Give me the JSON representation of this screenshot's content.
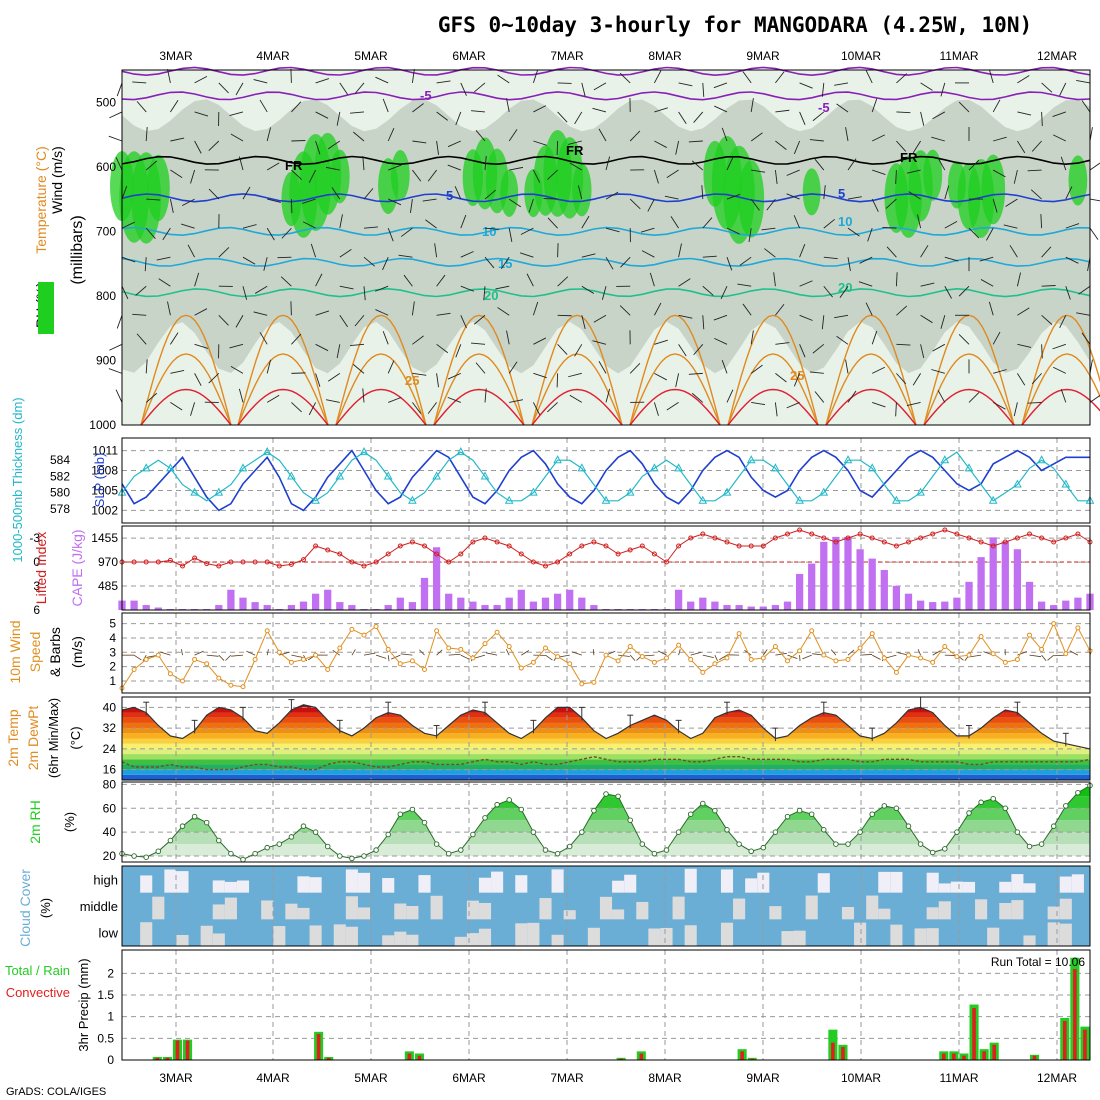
{
  "title": "GFS 0~10day 3-hourly for MANGODARA (4.25W, 10N)",
  "footer": "GrADS: COLA/IGES",
  "colors": {
    "rh_green": "#1fcf1f",
    "rh_grey": "#c8d4c8",
    "rh_light": "#e8f2e8",
    "temp_purple": "#8a1fb8",
    "temp_blue": "#1f3fd0",
    "temp_cyan": "#1fa8d8",
    "temp_teal": "#20c08c",
    "temp_orange": "#e08a1f",
    "temp_red": "#e01f2f",
    "slp_blue": "#1f3fd0",
    "thick_cyan": "#22b8c8",
    "li_red": "#d02020",
    "cape_purple": "#c070f0",
    "wind_orange": "#e0901f",
    "cloud_blue": "#6aaed6",
    "cloud_white": "#f0eef6",
    "precip_green": "#22cc22",
    "precip_red": "#e02020"
  },
  "chart_data": [
    {
      "type": "heatmap",
      "name_label": "RH (%) / Temperature (°C) / Wind (m/s) (millibars)",
      "ylabel_parts": [
        "Wind (m/s)",
        "Temperature (°C)",
        "RH (%)",
        "(millibars)"
      ],
      "x_dates": [
        "3MAR",
        "4MAR",
        "5MAR",
        "6MAR",
        "7MAR",
        "8MAR",
        "9MAR",
        "10MAR",
        "11MAR",
        "12MAR"
      ],
      "y_ticks": [
        500,
        600,
        700,
        800,
        900,
        1000
      ],
      "ylim": [
        450,
        1000
      ],
      "isotherm_labels": [
        "-5",
        "-5",
        "FR",
        "FR",
        "FR",
        "5",
        "5",
        "10",
        "10",
        "15",
        "20",
        "20",
        "25",
        "25"
      ],
      "isotherm_levels_mb": {
        "-5": 490,
        "FR": 590,
        "5": 650,
        "10": 700,
        "15": 750,
        "20": 795
      }
    },
    {
      "type": "line",
      "ylabel_left": "1000-500mb Thickness (dm)",
      "ylabel_right": "SLP (mb)",
      "thickness_ticks": [
        578,
        580,
        582,
        584
      ],
      "slp_ticks": [
        1002,
        1005,
        1008,
        1011
      ],
      "slp_values": [
        1006,
        1003,
        1004,
        1006,
        1008,
        1010,
        1007,
        1004,
        1002,
        1003,
        1006,
        1008,
        1010,
        1007,
        1003,
        1002,
        1004,
        1007,
        1009,
        1011,
        1008,
        1005,
        1003,
        1004,
        1007,
        1009,
        1011,
        1010,
        1007,
        1004,
        1003,
        1005,
        1008,
        1010,
        1011,
        1009,
        1006,
        1004,
        1003,
        1005,
        1008,
        1010,
        1011,
        1009,
        1006,
        1004,
        1003,
        1005,
        1008,
        1010,
        1011,
        1010,
        1007,
        1005,
        1004,
        1005,
        1008,
        1010,
        1011,
        1010,
        1008,
        1005,
        1004,
        1006,
        1008,
        1010,
        1011,
        1010,
        1008,
        1006,
        1005,
        1006,
        1009,
        1010,
        1011,
        1010,
        1008,
        1009,
        1010,
        1010,
        1010
      ],
      "thickness_values": [
        580,
        582,
        583,
        584,
        583,
        581,
        580,
        579,
        580,
        581,
        583,
        584,
        585,
        584,
        582,
        580,
        579,
        580,
        582,
        584,
        585,
        584,
        582,
        580,
        579,
        580,
        582,
        584,
        585,
        584,
        582,
        580,
        579,
        579,
        580,
        582,
        584,
        584,
        583,
        581,
        579,
        579,
        580,
        582,
        583,
        584,
        583,
        581,
        579,
        579,
        580,
        582,
        584,
        584,
        583,
        581,
        579,
        579,
        580,
        582,
        584,
        584,
        583,
        581,
        579,
        579,
        580,
        582,
        584,
        585,
        583,
        581,
        579,
        580,
        581,
        583,
        584,
        583,
        581,
        579,
        579
      ]
    },
    {
      "type": "bar",
      "ylabel_left": "Lifted Index",
      "ylabel_right": "CAPE (J/kg)",
      "li_ticks": [
        "-3",
        "0",
        "3",
        "6"
      ],
      "cape_ticks": [
        "1455",
        "970",
        "485"
      ],
      "cape_values": [
        190,
        190,
        100,
        50,
        20,
        20,
        20,
        20,
        100,
        410,
        250,
        160,
        100,
        20,
        100,
        170,
        330,
        410,
        160,
        100,
        20,
        20,
        100,
        250,
        160,
        650,
        1270,
        330,
        250,
        170,
        100,
        100,
        250,
        410,
        170,
        250,
        330,
        410,
        250,
        100,
        20,
        20,
        20,
        20,
        20,
        20,
        410,
        170,
        250,
        170,
        100,
        100,
        70,
        70,
        100,
        170,
        730,
        940,
        1380,
        1480,
        1480,
        1230,
        1040,
        810,
        490,
        330,
        190,
        160,
        170,
        250,
        570,
        1070,
        1470,
        1390,
        1230,
        570,
        170,
        100,
        190,
        250,
        330
      ],
      "li_values": [
        0,
        0,
        0,
        0,
        -0.2,
        0.5,
        -0.5,
        0.2,
        0.5,
        0,
        0,
        0,
        0,
        0.5,
        0.3,
        -0.3,
        -2,
        -1.5,
        -1,
        0,
        0.5,
        0,
        -1,
        -2,
        -2.5,
        -2,
        -1,
        0,
        -1,
        -2.5,
        -3,
        -2.5,
        -2,
        -1,
        0,
        0.5,
        0,
        -1,
        -2,
        -2.5,
        -2,
        -1,
        -1.5,
        -2,
        -1,
        0,
        -2,
        -3,
        -3.5,
        -3,
        -2.5,
        -2,
        -2,
        -2,
        -3,
        -3.5,
        -4,
        -3.5,
        -3,
        -2.5,
        -3,
        -3.5,
        -3,
        -2.5,
        -2,
        -2.5,
        -3,
        -3.5,
        -4,
        -3.5,
        -3,
        -2.5,
        -2,
        -2.5,
        -3,
        -3.5,
        -3,
        -2.5,
        -3,
        -3.5,
        -2.5
      ]
    },
    {
      "type": "line",
      "ylabel": "10m Wind Speed & Barbs (m/s)",
      "ylabel_parts": [
        "10m Wind",
        "Speed",
        "& Barbs",
        "(m/s)"
      ],
      "y_ticks": [
        1,
        2,
        3,
        4,
        5
      ],
      "values": [
        0.5,
        1.8,
        2.5,
        2.8,
        1.5,
        1.0,
        2.5,
        2.2,
        1.2,
        0.7,
        0.6,
        2.5,
        4.5,
        3.0,
        2.3,
        2.5,
        2.8,
        1.8,
        3.3,
        4.6,
        4.2,
        4.8,
        3.2,
        2.2,
        2.4,
        1.8,
        4.5,
        3.3,
        3.2,
        2.6,
        3.6,
        4.4,
        3.4,
        1.9,
        2.3,
        3.3,
        2.7,
        2.2,
        0.8,
        0.9,
        2.8,
        2.4,
        3.4,
        2.7,
        2.3,
        2.6,
        3.5,
        2.5,
        1.6,
        2.2,
        2.6,
        4.3,
        2.5,
        2.6,
        3.4,
        2.4,
        3.1,
        4.5,
        2.8,
        2.4,
        2.5,
        3.3,
        4.3,
        2.6,
        1.6,
        2.8,
        2.6,
        2.3,
        3.4,
        2.7,
        2.8,
        4.1,
        2.9,
        2.3,
        2.5,
        4.2,
        3.2,
        5.0,
        2.9,
        4.7,
        3.1
      ]
    },
    {
      "type": "area",
      "ylabel_parts": [
        "2m Temp",
        "2m DewPt",
        "(6hr Min/Max)",
        "(°C)"
      ],
      "y_ticks": [
        16,
        24,
        32,
        40
      ],
      "ylim": [
        12,
        44
      ],
      "temp_values": [
        39,
        40,
        38,
        33,
        29,
        28,
        31,
        37,
        40,
        39,
        36,
        31,
        30,
        34,
        39,
        41,
        40,
        35,
        31,
        29,
        32,
        36,
        38,
        37,
        33,
        30,
        29,
        33,
        37,
        39,
        38,
        34,
        30,
        28,
        31,
        36,
        40,
        40,
        36,
        31,
        28,
        30,
        33,
        35,
        37,
        35,
        31,
        28,
        30,
        36,
        38,
        39,
        37,
        32,
        28,
        29,
        33,
        36,
        38,
        37,
        33,
        29,
        28,
        30,
        34,
        39,
        40,
        38,
        33,
        29,
        29,
        32,
        36,
        39,
        38,
        34,
        30,
        27,
        26,
        25,
        24
      ],
      "dewpoint_values": [
        19,
        17,
        17,
        17,
        18,
        17,
        17,
        16,
        16,
        16,
        17,
        18,
        18,
        17,
        17,
        16,
        16,
        18,
        19,
        19,
        18,
        17,
        17,
        18,
        19,
        19,
        18,
        18,
        18,
        19,
        20,
        19,
        19,
        18,
        19,
        18,
        18,
        19,
        20,
        21,
        20,
        19,
        19,
        19,
        20,
        20,
        20,
        19,
        19,
        20,
        21,
        21,
        20,
        20,
        20,
        20,
        19,
        19,
        20,
        20,
        20,
        19,
        19,
        20,
        20,
        20,
        19,
        19,
        19,
        19,
        18,
        18,
        19,
        19,
        19,
        19,
        19,
        19,
        19,
        19,
        20
      ]
    },
    {
      "type": "area",
      "ylabel": "2m RH (%)",
      "y_ticks": [
        20,
        40,
        60,
        80
      ],
      "ylim": [
        15,
        82
      ],
      "values": [
        22,
        20,
        19,
        24,
        33,
        45,
        53,
        48,
        33,
        22,
        17,
        22,
        27,
        30,
        36,
        45,
        40,
        28,
        20,
        18,
        20,
        25,
        38,
        55,
        59,
        48,
        30,
        22,
        25,
        38,
        52,
        63,
        67,
        59,
        40,
        25,
        22,
        28,
        40,
        58,
        72,
        70,
        50,
        30,
        22,
        25,
        40,
        55,
        64,
        58,
        42,
        30,
        24,
        27,
        40,
        53,
        58,
        55,
        42,
        30,
        30,
        40,
        55,
        62,
        60,
        45,
        30,
        23,
        26,
        40,
        56,
        65,
        68,
        60,
        40,
        28,
        30,
        45,
        62,
        73,
        79
      ]
    },
    {
      "type": "heatmap",
      "ylabel": "Cloud Cover (%)",
      "levels": [
        "high",
        "middle",
        "low"
      ]
    },
    {
      "type": "bar",
      "ylabel_left": "Total / Rain",
      "ylabel_left2": "Convective",
      "ylabel": "3hr Precip (mm)",
      "y_ticks": [
        "0",
        "0.5",
        "1",
        "1.5",
        "2"
      ],
      "ylim": [
        0,
        2.4
      ],
      "run_total_label": "Run Total = 10.06",
      "total_values": [
        0,
        0,
        0,
        0.07,
        0.07,
        0.47,
        0.47,
        0,
        0,
        0,
        0,
        0,
        0,
        0,
        0,
        0,
        0,
        0,
        0,
        0.65,
        0.07,
        0,
        0,
        0,
        0,
        0,
        0,
        0,
        0.2,
        0.15,
        0,
        0,
        0,
        0,
        0,
        0,
        0,
        0,
        0,
        0,
        0,
        0,
        0,
        0,
        0,
        0,
        0,
        0,
        0,
        0.05,
        0,
        0.2,
        0,
        0,
        0,
        0,
        0,
        0,
        0,
        0,
        0,
        0.25,
        0.05,
        0,
        0,
        0,
        0,
        0,
        0,
        0,
        0.7,
        0.35,
        0,
        0,
        0,
        0,
        0,
        0,
        0,
        0,
        0,
        0.2,
        0.2,
        0.15,
        1.28,
        0.25,
        0.4,
        0,
        0,
        0,
        0.12,
        0,
        0,
        0.97,
        2.36,
        0.77
      ],
      "conv_values": [
        0,
        0,
        0,
        0.05,
        0.05,
        0.45,
        0.45,
        0,
        0,
        0,
        0,
        0,
        0,
        0,
        0,
        0,
        0,
        0,
        0,
        0.6,
        0.05,
        0,
        0,
        0,
        0,
        0,
        0,
        0,
        0.15,
        0.1,
        0,
        0,
        0,
        0,
        0,
        0,
        0,
        0,
        0,
        0,
        0,
        0,
        0,
        0,
        0,
        0,
        0,
        0,
        0,
        0.03,
        0,
        0.15,
        0,
        0,
        0,
        0,
        0,
        0,
        0,
        0,
        0,
        0.2,
        0.03,
        0,
        0,
        0,
        0,
        0,
        0,
        0,
        0.4,
        0.3,
        0,
        0,
        0,
        0,
        0,
        0,
        0,
        0,
        0,
        0.15,
        0.15,
        0.1,
        1.2,
        0.2,
        0.35,
        0,
        0,
        0,
        0.1,
        0,
        0,
        0.9,
        2.1,
        0.7
      ]
    }
  ]
}
